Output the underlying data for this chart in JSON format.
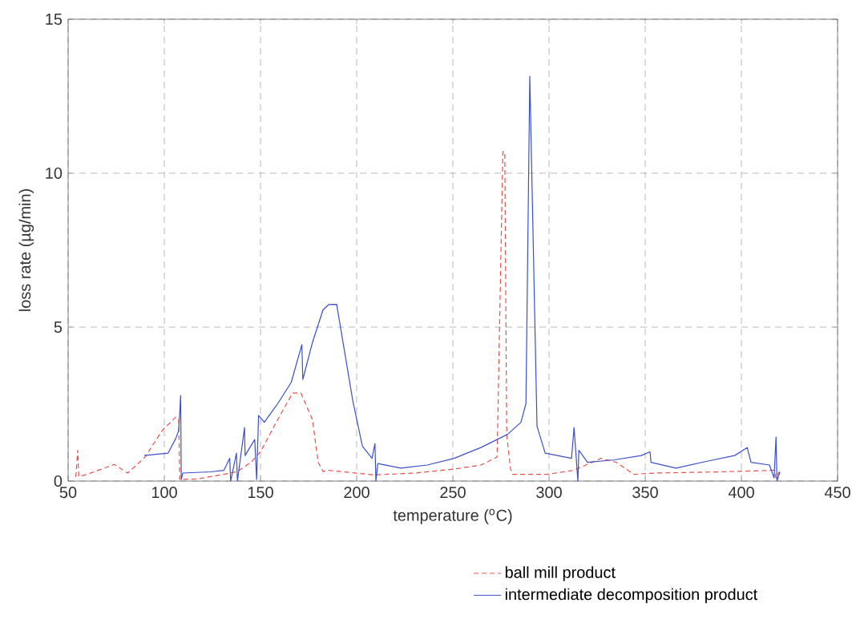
{
  "chart_data": {
    "type": "line",
    "xlabel": "temperature ($^{o}$C)",
    "ylabel": "loss rate (µg/min)",
    "xlim": [
      50,
      450
    ],
    "ylim": [
      0,
      15
    ],
    "xticks": [
      50,
      100,
      150,
      200,
      250,
      300,
      350,
      400,
      450
    ],
    "yticks": [
      0,
      5,
      10,
      15
    ],
    "grid": true,
    "legend": "bottom right",
    "marker": "none",
    "series": [
      {
        "name": "ball mill product",
        "color": "#e8504a",
        "line_style": "dashed",
        "x": [
          54,
          55,
          55.5,
          60,
          74,
          81,
          90,
          99,
          106,
          107.5,
          108,
          117,
          131,
          138,
          145,
          150,
          159,
          166.7,
          171,
          177,
          180,
          182.5,
          185,
          209,
          230,
          250.7,
          264.6,
          273,
          276,
          277,
          278,
          280,
          281,
          299,
          313,
          327,
          335,
          344,
          355,
          389.6,
          417,
          418,
          419.6
        ],
        "values": [
          0.13,
          1.0,
          0.15,
          0.22,
          0.54,
          0.26,
          0.78,
          1.65,
          2.08,
          2.0,
          0.05,
          0.07,
          0.22,
          0.31,
          0.61,
          0.95,
          2.0,
          2.86,
          2.86,
          2.0,
          0.61,
          0.31,
          0.35,
          0.2,
          0.26,
          0.39,
          0.52,
          0.78,
          10.7,
          10.7,
          1.5,
          0.39,
          0.22,
          0.22,
          0.35,
          0.74,
          0.61,
          0.22,
          0.26,
          0.3,
          0.35,
          0.1,
          0.3
        ]
      },
      {
        "name": "intermediate decomposition product",
        "color": "#3b4fc8",
        "line_style": "solid",
        "x": [
          89.6,
          102,
          106,
          107.5,
          108.5,
          108.8,
          109.6,
          124,
          131,
          134,
          134.5,
          137.5,
          138,
          141.7,
          142,
          147,
          148,
          149,
          152,
          159,
          166,
          171.5,
          172,
          177,
          182.5,
          185.4,
          189.6,
          198,
          203,
          208,
          209.5,
          210,
          211,
          223,
          236.7,
          250.7,
          264.6,
          278.5,
          285.4,
          288,
          290,
          293.75,
          298,
          311.7,
          313,
          315,
          315.5,
          320,
          334,
          348,
          352.5,
          353,
          366,
          382.6,
          396.5,
          403,
          405,
          414.6,
          417,
          418,
          418.5,
          420
        ],
        "values": [
          0.83,
          0.91,
          1.39,
          1.65,
          2.78,
          0.05,
          0.26,
          0.3,
          0.35,
          0.74,
          0,
          0.91,
          0,
          1.74,
          0.83,
          1.35,
          0.05,
          2.13,
          1.91,
          2.52,
          3.21,
          4.43,
          3.3,
          4.5,
          5.56,
          5.73,
          5.74,
          2.6,
          1.13,
          0.74,
          1.22,
          0,
          0.57,
          0.42,
          0.52,
          0.74,
          1.09,
          1.52,
          1.91,
          2.52,
          13.15,
          1.78,
          0.91,
          0.74,
          1.74,
          0,
          1.0,
          0.61,
          0.69,
          0.83,
          0.95,
          0.61,
          0.42,
          0.65,
          0.83,
          1.09,
          0.61,
          0.52,
          0.1,
          1.43,
          0,
          0.3
        ]
      }
    ]
  }
}
